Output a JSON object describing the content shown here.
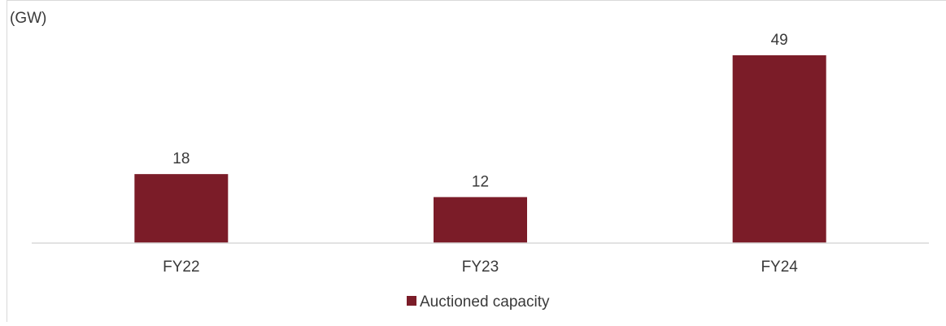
{
  "chart_data": {
    "type": "bar",
    "unit_label": "(GW)",
    "categories": [
      "FY22",
      "FY23",
      "FY24"
    ],
    "series": [
      {
        "name": "Auctioned capacity",
        "values": [
          18,
          12,
          49
        ]
      }
    ],
    "data_labels": [
      "18",
      "12",
      "49"
    ],
    "ylim": [
      0,
      56
    ],
    "grid": false,
    "legend_position": "bottom",
    "bar_color": "#7b1c28",
    "axis_color": "#d9d9d9",
    "text_color": "#3a3a3a"
  }
}
